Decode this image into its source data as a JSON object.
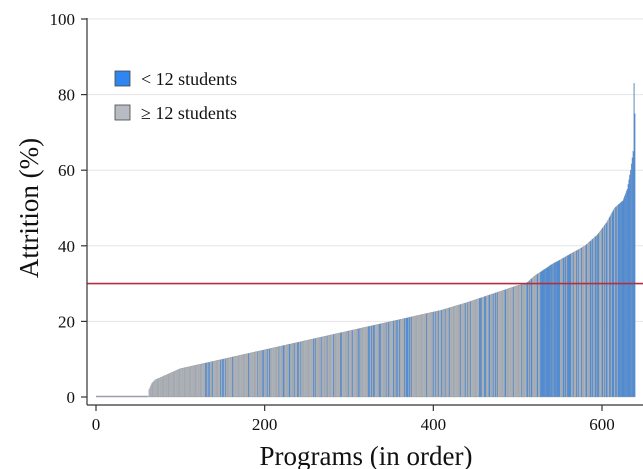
{
  "chart_data": {
    "type": "bar",
    "xlabel": "Programs (in order)",
    "ylabel": "Attrition (%)",
    "xlim": [
      -5,
      640
    ],
    "ylim": [
      0,
      100
    ],
    "x_ticks": [
      0,
      200,
      400,
      600
    ],
    "y_ticks": [
      0,
      20,
      40,
      60,
      80,
      100
    ],
    "grid": "horizontal",
    "legend_position": "top-left",
    "n_programs": 640,
    "reference_line": {
      "y": 30,
      "color": "#b03040"
    },
    "series": [
      {
        "name": "< 12 students",
        "color": "#2f86f0"
      },
      {
        "name": "≥ 12 students",
        "color": "#b7bcc2"
      }
    ],
    "attrition_profile": [
      [
        0,
        0
      ],
      [
        62,
        0
      ],
      [
        63,
        2
      ],
      [
        66,
        3.5
      ],
      [
        70,
        4.5
      ],
      [
        80,
        5.5
      ],
      [
        90,
        6.5
      ],
      [
        100,
        7.5
      ],
      [
        120,
        8.5
      ],
      [
        140,
        9.5
      ],
      [
        160,
        10.5
      ],
      [
        180,
        11.5
      ],
      [
        200,
        12.5
      ],
      [
        230,
        14
      ],
      [
        260,
        15.5
      ],
      [
        290,
        17
      ],
      [
        320,
        18.5
      ],
      [
        350,
        20
      ],
      [
        380,
        21.5
      ],
      [
        410,
        23
      ],
      [
        440,
        25
      ],
      [
        460,
        26.5
      ],
      [
        480,
        28
      ],
      [
        500,
        29.5
      ],
      [
        510,
        30
      ],
      [
        520,
        32
      ],
      [
        540,
        35
      ],
      [
        560,
        37.5
      ],
      [
        580,
        40
      ],
      [
        595,
        43
      ],
      [
        605,
        46
      ],
      [
        615,
        50
      ],
      [
        625,
        52
      ],
      [
        630,
        55
      ],
      [
        634,
        60
      ],
      [
        637,
        65
      ],
      [
        638,
        83
      ],
      [
        639,
        75
      ],
      [
        640,
        86
      ]
    ]
  }
}
